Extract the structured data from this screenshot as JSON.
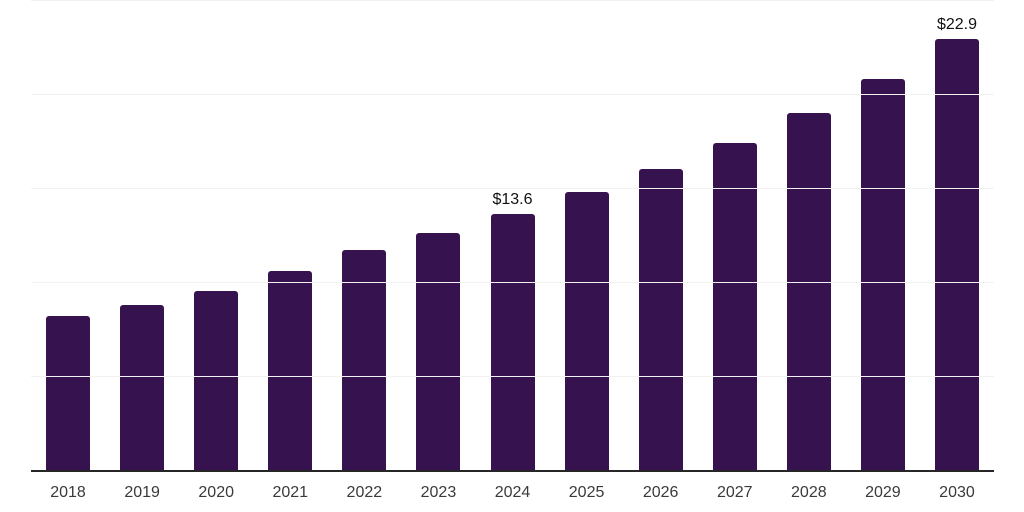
{
  "chart_data": {
    "type": "bar",
    "title": "",
    "xlabel": "",
    "ylabel": "",
    "categories": [
      "2018",
      "2019",
      "2020",
      "2021",
      "2022",
      "2023",
      "2024",
      "2025",
      "2026",
      "2027",
      "2028",
      "2029",
      "2030"
    ],
    "values": [
      8.2,
      8.8,
      9.5,
      10.6,
      11.7,
      12.6,
      13.6,
      14.8,
      16.0,
      17.4,
      19.0,
      20.8,
      22.9
    ],
    "annotations": [
      {
        "category": "2024",
        "text": "$13.6"
      },
      {
        "category": "2030",
        "text": "$22.9"
      }
    ],
    "ylim": [
      0,
      25
    ],
    "gridlines": [
      5,
      10,
      15,
      20,
      25
    ],
    "grid": "horizontal-only",
    "legend": "none",
    "y_axis_labels": "hidden",
    "colors": {
      "bar": "#36124E",
      "axis_line": "#262626",
      "gridline": "#f2f2f2",
      "tick_label": "#3a3a3a",
      "data_label": "#111111",
      "background": "#ffffff"
    }
  }
}
